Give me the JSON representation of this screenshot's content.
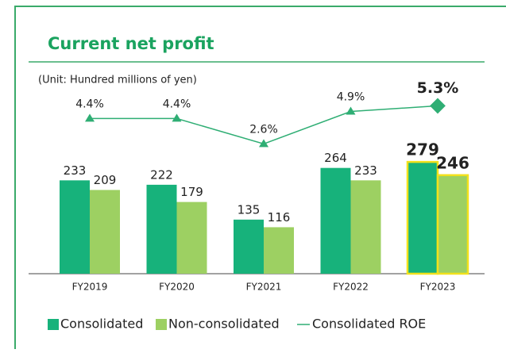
{
  "chart_data": {
    "type": "bar",
    "title": "Current net profit",
    "subtitle": "(Unit: Hundred millions of yen)",
    "categories": [
      "FY2019",
      "FY2020",
      "FY2021",
      "FY2022",
      "FY2023"
    ],
    "highlight_category": "FY2023",
    "series": [
      {
        "name": "Consolidated",
        "type": "bar",
        "color": "#17b27b",
        "values": [
          233,
          222,
          135,
          264,
          279
        ]
      },
      {
        "name": "Non-consolidated",
        "type": "bar",
        "color": "#9dd062",
        "values": [
          209,
          179,
          116,
          233,
          246
        ]
      },
      {
        "name": "Consolidated ROE",
        "type": "line",
        "axis": "y2",
        "color": "#2fae74",
        "values": [
          4.4,
          4.4,
          2.6,
          4.9,
          5.3
        ],
        "value_labels": [
          "4.4%",
          "4.4%",
          "2.6%",
          "4.9%",
          "5.3%"
        ]
      }
    ],
    "ylim": [
      0,
      400
    ],
    "y2lim": [
      2,
      6
    ],
    "legend": "bottom-left"
  }
}
